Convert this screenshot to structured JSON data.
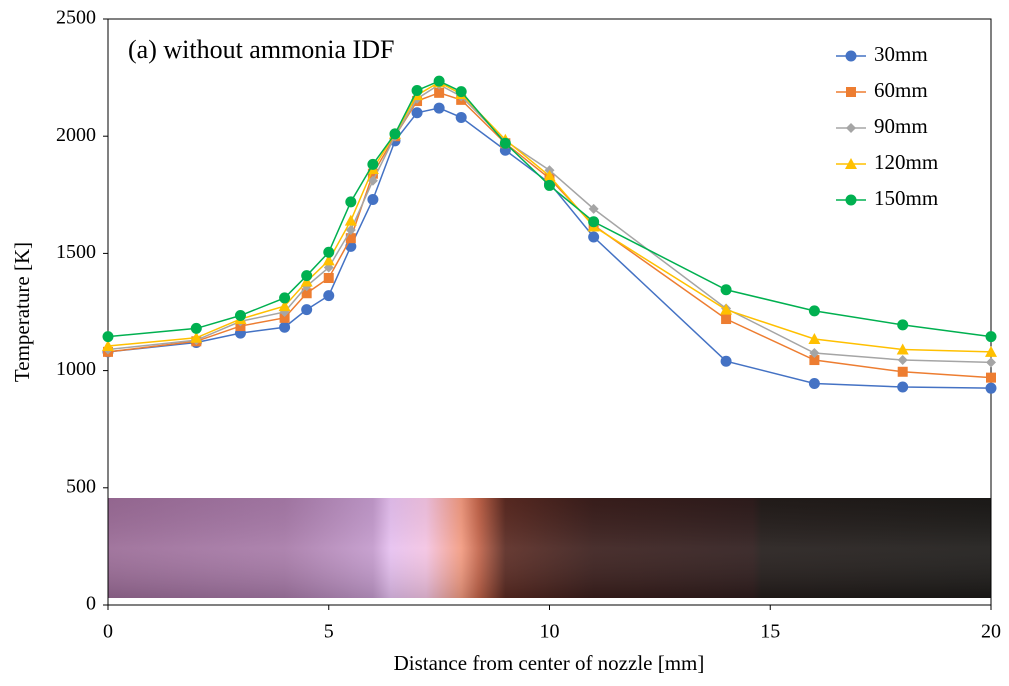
{
  "chart_data": {
    "type": "line",
    "annotation": "(a) without ammonia IDF",
    "x_label": "Distance from center of nozzle [mm]",
    "y_label": "Temperature [K]",
    "xlim": [
      0,
      20
    ],
    "xticks": [
      0,
      5,
      10,
      15,
      20
    ],
    "ylim": [
      0,
      2500
    ],
    "yticks": [
      0,
      500,
      1000,
      1500,
      2000,
      2500
    ],
    "grid": false,
    "legend": "top-right",
    "x": [
      0,
      2,
      3,
      4,
      4.5,
      5,
      5.5,
      6,
      6.5,
      7,
      7.5,
      8,
      9,
      10,
      11,
      14,
      16,
      18,
      20
    ],
    "series": [
      {
        "name": "30mm",
        "color": "#4472c4",
        "marker": "circle",
        "values": [
          1080,
          1120,
          1160,
          1185,
          1260,
          1320,
          1530,
          1730,
          1980,
          2100,
          2120,
          2080,
          1940,
          1800,
          1570,
          1040,
          945,
          930,
          925
        ]
      },
      {
        "name": "60mm",
        "color": "#ed7d31",
        "marker": "square",
        "values": [
          1080,
          1125,
          1190,
          1225,
          1330,
          1395,
          1565,
          1840,
          2000,
          2150,
          2185,
          2155,
          1970,
          1820,
          1620,
          1220,
          1045,
          995,
          970
        ]
      },
      {
        "name": "90mm",
        "color": "#a5a5a5",
        "marker": "diamond",
        "values": [
          1090,
          1130,
          1210,
          1250,
          1360,
          1440,
          1600,
          1810,
          2000,
          2160,
          2220,
          2170,
          1980,
          1855,
          1690,
          1265,
          1075,
          1045,
          1035
        ]
      },
      {
        "name": "120mm",
        "color": "#ffc000",
        "marker": "triangle",
        "values": [
          1105,
          1140,
          1220,
          1275,
          1380,
          1470,
          1640,
          1860,
          2010,
          2175,
          2230,
          2180,
          1985,
          1830,
          1615,
          1260,
          1135,
          1090,
          1080
        ]
      },
      {
        "name": "150mm",
        "color": "#00b050",
        "marker": "circle",
        "values": [
          1145,
          1180,
          1235,
          1310,
          1405,
          1505,
          1720,
          1880,
          2010,
          2195,
          2235,
          2190,
          1970,
          1790,
          1635,
          1345,
          1255,
          1195,
          1145
        ]
      }
    ]
  }
}
